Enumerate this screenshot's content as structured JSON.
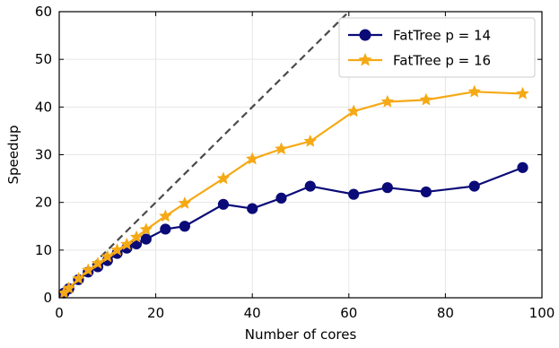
{
  "chart_data": {
    "type": "line",
    "xlabel": "Number of cores",
    "ylabel": "Speedup",
    "xlim": [
      0,
      100
    ],
    "ylim": [
      0,
      60
    ],
    "xticks": [
      0,
      20,
      40,
      60,
      80,
      100
    ],
    "yticks": [
      0,
      10,
      20,
      30,
      40,
      50,
      60
    ],
    "grid": true,
    "legend_position": "top-right",
    "reference_line": {
      "style": "dashed",
      "color": "#4a4a4a",
      "x": [
        0,
        60
      ],
      "y": [
        0,
        60
      ]
    },
    "series": [
      {
        "name": "FatTree p = 14",
        "color": "#0a0a78",
        "marker": "circle",
        "x": [
          1,
          2,
          4,
          6,
          8,
          10,
          12,
          14,
          16,
          18,
          22,
          26,
          34,
          40,
          46,
          52,
          61,
          68,
          76,
          86,
          96
        ],
        "y": [
          1.0,
          1.9,
          3.8,
          5.4,
          6.5,
          7.8,
          9.3,
          10.4,
          11.3,
          12.3,
          14.4,
          15.0,
          19.6,
          18.7,
          20.9,
          23.4,
          21.7,
          23.1,
          22.2,
          23.4,
          27.3
        ]
      },
      {
        "name": "FatTree p = 16",
        "color": "#f5a915",
        "marker": "star",
        "x": [
          1,
          2,
          4,
          6,
          8,
          10,
          12,
          14,
          16,
          18,
          22,
          26,
          34,
          40,
          46,
          52,
          61,
          68,
          76,
          86,
          96
        ],
        "y": [
          1.0,
          2.0,
          4.0,
          5.8,
          7.2,
          8.6,
          10.0,
          11.2,
          12.7,
          14.3,
          17.1,
          19.8,
          25.0,
          29.1,
          31.2,
          32.8,
          39.1,
          41.1,
          41.5,
          43.2,
          42.8
        ]
      }
    ]
  }
}
